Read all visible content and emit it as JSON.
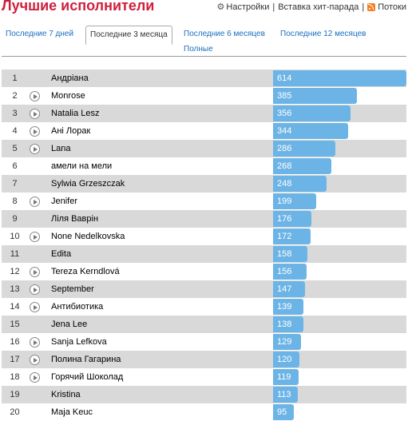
{
  "header": {
    "title": "Лучшие исполнители",
    "links": {
      "settings": "Настройки",
      "embed": "Вставка хит-парада",
      "feeds": "Потоки"
    },
    "separator": "|"
  },
  "tabs": [
    {
      "label": "Последние 7 дней",
      "active": false
    },
    {
      "label": "Последние 3 месяца",
      "active": true
    },
    {
      "label": "Последние 6 месяцев",
      "active": false
    },
    {
      "label": "Последние 12 месяцев",
      "active": false
    },
    {
      "label": "Полные",
      "active": false
    }
  ],
  "chart_data": {
    "type": "bar",
    "max_value": 614,
    "colors": {
      "bar": "#6cb4e6",
      "row_odd": "#d9d9d9",
      "title": "#d01f3c"
    },
    "rows": [
      {
        "rank": "1",
        "artist": "Андріана",
        "plays": 614,
        "playable": false
      },
      {
        "rank": "2",
        "artist": "Monrose",
        "plays": 385,
        "playable": true
      },
      {
        "rank": "3",
        "artist": "Natalia Lesz",
        "plays": 356,
        "playable": true
      },
      {
        "rank": "4",
        "artist": "Ані Лорак",
        "plays": 344,
        "playable": true
      },
      {
        "rank": "5",
        "artist": "Lana",
        "plays": 286,
        "playable": true
      },
      {
        "rank": "6",
        "artist": "амели на мели",
        "plays": 268,
        "playable": false
      },
      {
        "rank": "7",
        "artist": "Sylwia Grzeszczak",
        "plays": 248,
        "playable": false
      },
      {
        "rank": "8",
        "artist": "Jenifer",
        "plays": 199,
        "playable": true
      },
      {
        "rank": "9",
        "artist": "Ліля Ваврін",
        "plays": 176,
        "playable": false
      },
      {
        "rank": "10",
        "artist": "None Nedelkovska",
        "plays": 172,
        "playable": true
      },
      {
        "rank": "11",
        "artist": "Edita",
        "plays": 158,
        "playable": false
      },
      {
        "rank": "12",
        "artist": "Tereza Kerndlová",
        "plays": 156,
        "playable": true
      },
      {
        "rank": "13",
        "artist": "September",
        "plays": 147,
        "playable": true
      },
      {
        "rank": "14",
        "artist": "Антибиотика",
        "plays": 139,
        "playable": true
      },
      {
        "rank": "15",
        "artist": "Jena Lee",
        "plays": 138,
        "playable": false
      },
      {
        "rank": "16",
        "artist": "Sanja Lefkova",
        "plays": 129,
        "playable": true
      },
      {
        "rank": "17",
        "artist": "Полина Гагарина",
        "plays": 120,
        "playable": true
      },
      {
        "rank": "18",
        "artist": "Горячий Шоколад",
        "plays": 119,
        "playable": true
      },
      {
        "rank": "19",
        "artist": "Kristina",
        "plays": 113,
        "playable": false
      },
      {
        "rank": "20",
        "artist": "Maja Keuc",
        "plays": 95,
        "playable": false
      }
    ]
  }
}
